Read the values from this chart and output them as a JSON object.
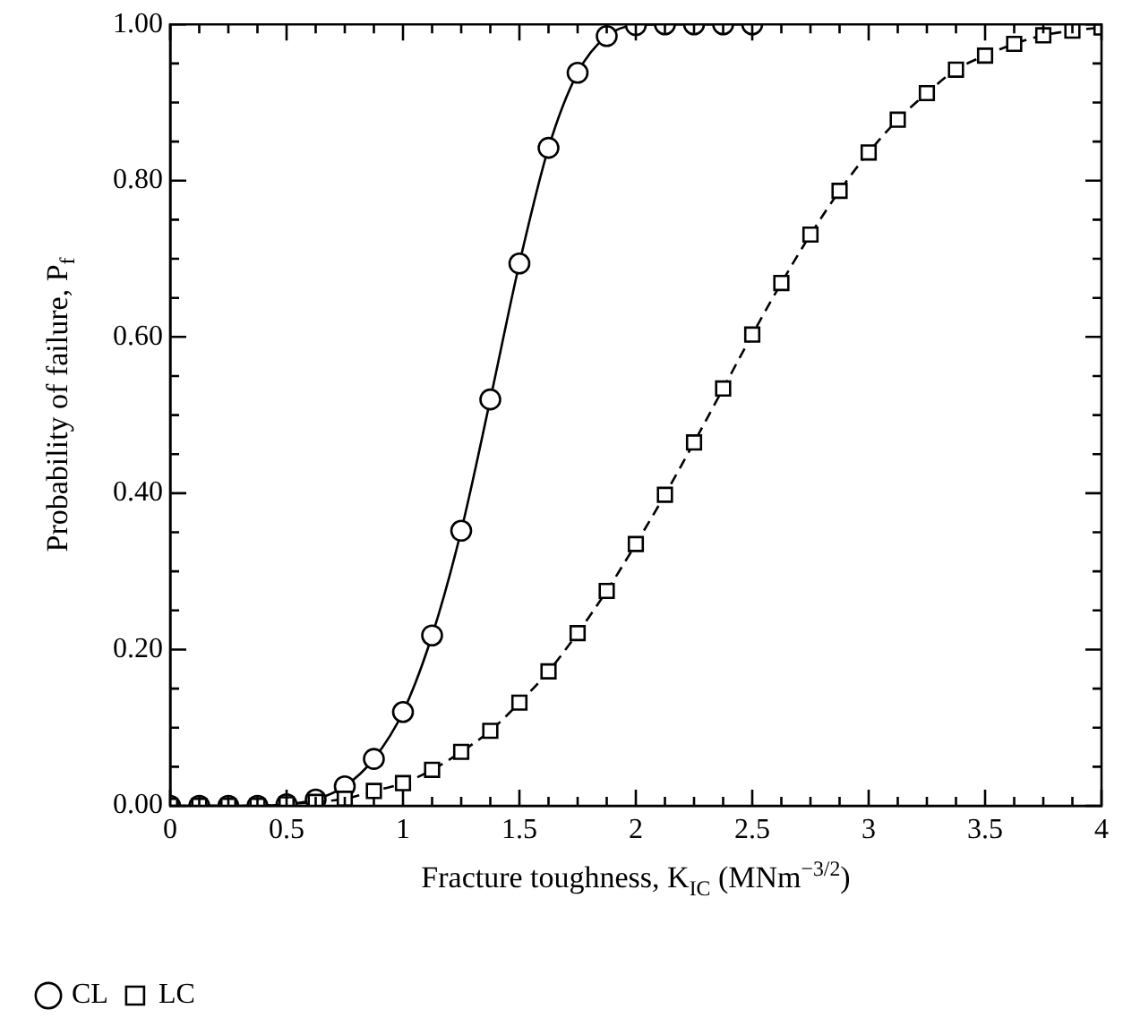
{
  "chart_data": {
    "type": "line",
    "xlabel": "Fracture toughness, K$_{IC}$ (MNm$^{−3/2}$)",
    "ylabel": "Probability of failure, P$_{f}$",
    "xlim": [
      0,
      4
    ],
    "ylim": [
      0,
      1
    ],
    "xticks": [
      0,
      {
        "value": 0.125,
        "label": null
      },
      {
        "value": 0.25,
        "label": null
      },
      {
        "value": 0.375,
        "label": null
      },
      0.5,
      {
        "value": 0.625,
        "label": null
      },
      {
        "value": 0.75,
        "label": null
      },
      {
        "value": 0.875,
        "label": null
      },
      1,
      {
        "value": 1.125,
        "label": null
      },
      {
        "value": 1.25,
        "label": null
      },
      {
        "value": 1.375,
        "label": null
      },
      1.5,
      {
        "value": 1.625,
        "label": null
      },
      {
        "value": 1.75,
        "label": null
      },
      {
        "value": 1.875,
        "label": null
      },
      2,
      {
        "value": 2.125,
        "label": null
      },
      {
        "value": 2.25,
        "label": null
      },
      {
        "value": 2.375,
        "label": null
      },
      2.5,
      {
        "value": 2.625,
        "label": null
      },
      {
        "value": 2.75,
        "label": null
      },
      {
        "value": 2.875,
        "label": null
      },
      3,
      {
        "value": 3.125,
        "label": null
      },
      {
        "value": 3.25,
        "label": null
      },
      {
        "value": 3.375,
        "label": null
      },
      3.5,
      {
        "value": 3.625,
        "label": null
      },
      {
        "value": 3.75,
        "label": null
      },
      {
        "value": 3.875,
        "label": null
      },
      4
    ],
    "yticks": [
      {
        "value": 0,
        "label": "0.00"
      },
      {
        "value": 0.05,
        "label": null
      },
      {
        "value": 0.1,
        "label": null
      },
      {
        "value": 0.15,
        "label": null
      },
      {
        "value": 0.2,
        "label": "0.20"
      },
      {
        "value": 0.25,
        "label": null
      },
      {
        "value": 0.3,
        "label": null
      },
      {
        "value": 0.35,
        "label": null
      },
      {
        "value": 0.4,
        "label": "0.40"
      },
      {
        "value": 0.45,
        "label": null
      },
      {
        "value": 0.5,
        "label": null
      },
      {
        "value": 0.55,
        "label": null
      },
      {
        "value": 0.6,
        "label": "0.60"
      },
      {
        "value": 0.65,
        "label": null
      },
      {
        "value": 0.7,
        "label": null
      },
      {
        "value": 0.75,
        "label": null
      },
      {
        "value": 0.8,
        "label": "0.80"
      },
      {
        "value": 0.85,
        "label": null
      },
      {
        "value": 0.9,
        "label": null
      },
      {
        "value": 0.95,
        "label": null
      },
      {
        "value": 1,
        "label": "1.00"
      }
    ],
    "grid": false,
    "legend": "bottom left",
    "series": [
      {
        "name": "CL",
        "color": "#000000",
        "marker": "circle",
        "line_style": "solid",
        "x": [
          0,
          0.125,
          0.25,
          0.375,
          0.5,
          0.625,
          0.75,
          0.875,
          1,
          1.125,
          1.25,
          1.375,
          1.5,
          1.625,
          1.75,
          1.875,
          2,
          2.125,
          2.25,
          2.375,
          2.5
        ],
        "values": [
          0,
          0,
          0,
          0,
          0.002,
          0.008,
          0.025,
          0.06,
          0.12,
          0.218,
          0.352,
          0.52,
          0.694,
          0.842,
          0.938,
          0.985,
          0.999,
          1,
          1,
          1,
          1
        ]
      },
      {
        "name": "LC",
        "color": "#000000",
        "marker": "square",
        "line_style": "dashed",
        "x": [
          0,
          0.125,
          0.25,
          0.375,
          0.5,
          0.625,
          0.75,
          0.875,
          1,
          1.125,
          1.25,
          1.375,
          1.5,
          1.625,
          1.75,
          1.875,
          2,
          2.125,
          2.25,
          2.375,
          2.5,
          2.625,
          2.75,
          2.875,
          3,
          3.125,
          3.25,
          3.375,
          3.5,
          3.625,
          3.75,
          3.875,
          4
        ],
        "values": [
          0,
          0,
          0,
          0,
          0.002,
          0.005,
          0.009,
          0.019,
          0.029,
          0.046,
          0.069,
          0.096,
          0.132,
          0.172,
          0.221,
          0.275,
          0.335,
          0.398,
          0.465,
          0.534,
          0.603,
          0.669,
          0.731,
          0.787,
          0.836,
          0.878,
          0.912,
          0.942,
          0.96,
          0.975,
          0.986,
          0.992,
          0.996
        ]
      }
    ]
  }
}
